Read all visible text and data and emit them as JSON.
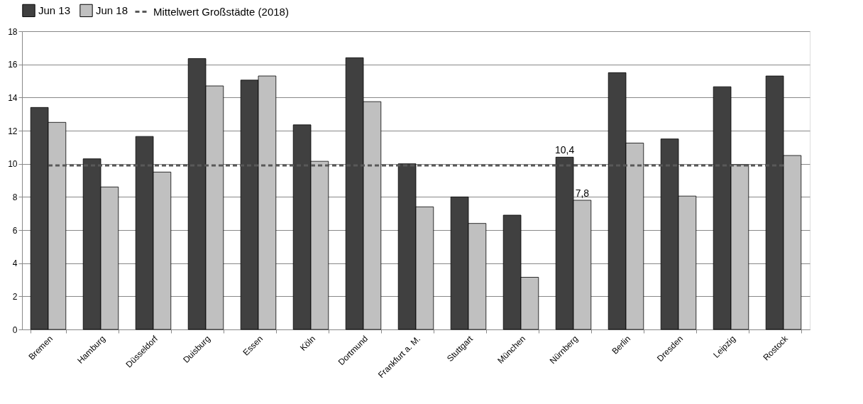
{
  "chart_data": {
    "type": "bar",
    "categories": [
      "Bremen",
      "Hamburg",
      "Düsseldorf",
      "Duisburg",
      "Essen",
      "Köln",
      "Dortmund",
      "Frankfurt a. M.",
      "Stuttgart",
      "München",
      "Nürnberg",
      "Berlin",
      "Dresden",
      "Leipzig",
      "Rostock"
    ],
    "series": [
      {
        "name": "Jun 13",
        "color": "#404040",
        "values": [
          13.4,
          10.3,
          11.65,
          16.35,
          15.05,
          12.35,
          16.4,
          10.0,
          8.0,
          6.9,
          10.4,
          15.5,
          11.5,
          14.65,
          15.3
        ],
        "value_labels": [
          null,
          null,
          null,
          null,
          null,
          null,
          null,
          null,
          null,
          null,
          "10,4",
          null,
          null,
          null,
          null
        ]
      },
      {
        "name": "Jun 18",
        "color": "#c0c0c0",
        "values": [
          12.5,
          8.6,
          9.5,
          14.7,
          15.3,
          10.15,
          13.75,
          7.4,
          6.4,
          3.15,
          7.8,
          11.25,
          8.05,
          9.95,
          10.5
        ],
        "value_labels": [
          null,
          null,
          null,
          null,
          null,
          null,
          null,
          null,
          null,
          null,
          "7,8",
          null,
          null,
          null,
          null
        ]
      },
      {
        "name": "Mittelwert Großstädte (2018)",
        "type": "line",
        "line_style": "dashed",
        "color": "#595959",
        "values": [
          9.9,
          9.9,
          9.9,
          9.9,
          9.9,
          9.9,
          9.9,
          9.9,
          9.9,
          9.9,
          9.9,
          9.9,
          9.9,
          9.9,
          9.9
        ]
      }
    ],
    "ylim": [
      0,
      18
    ],
    "yticks": [
      0,
      2,
      4,
      6,
      8,
      10,
      12,
      14,
      16,
      18
    ],
    "grid": "y",
    "legend": "top"
  }
}
